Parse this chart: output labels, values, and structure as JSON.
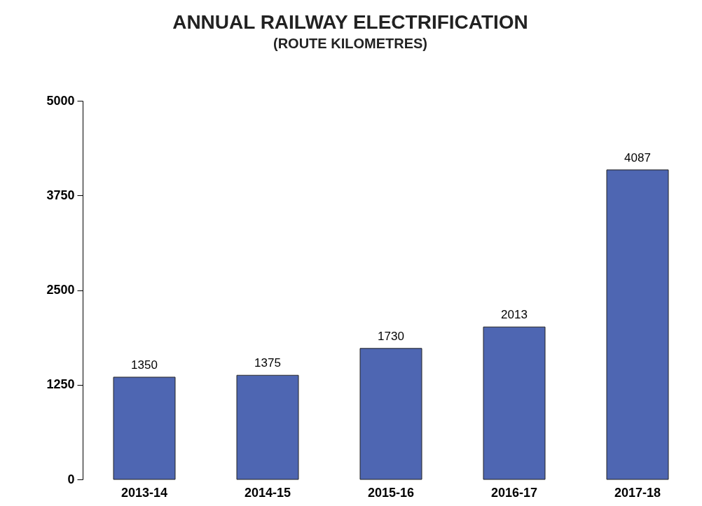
{
  "chart_data": {
    "type": "bar",
    "title": "ANNUAL RAILWAY ELECTRIFICATION",
    "subtitle": "(ROUTE KILOMETRES)",
    "categories": [
      "2013-14",
      "2014-15",
      "2015-16",
      "2016-17",
      "2017-18"
    ],
    "values": [
      1350,
      1375,
      1730,
      2013,
      4087
    ],
    "color": "#4e66b2",
    "ylim": [
      0,
      5000
    ],
    "yticks": [
      0,
      1250,
      2500,
      3750,
      5000
    ],
    "data_labels": true,
    "grid": false
  }
}
